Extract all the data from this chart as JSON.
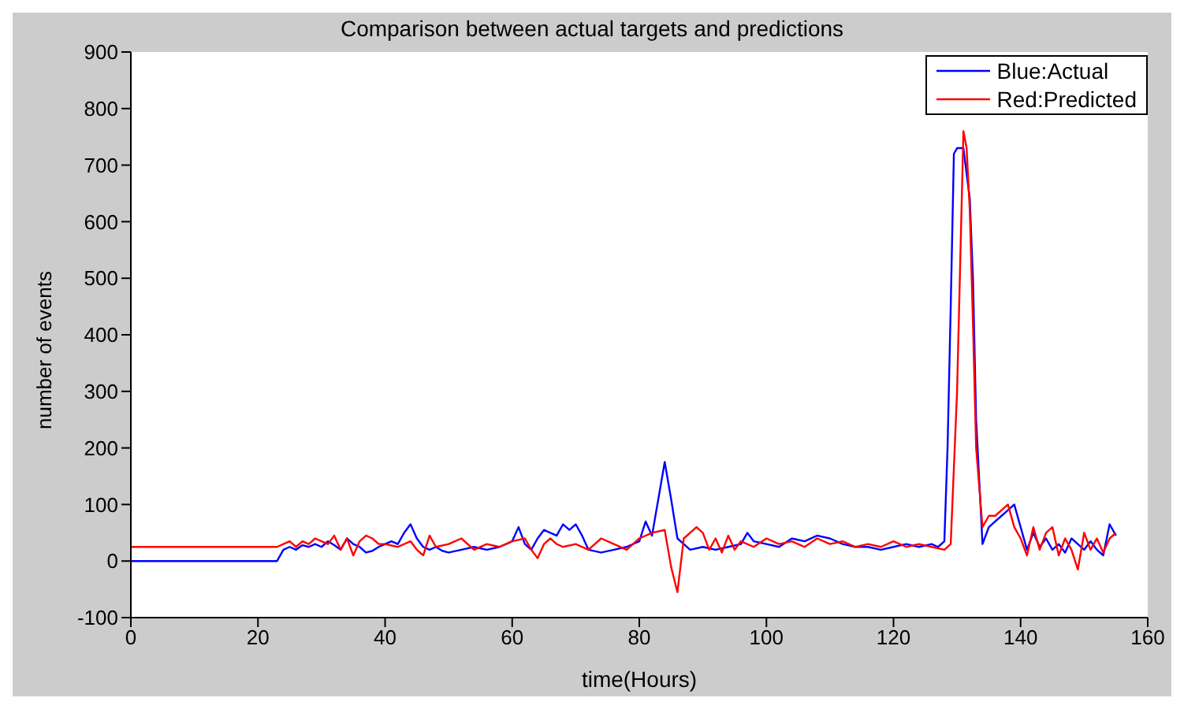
{
  "chart_data": {
    "type": "line",
    "title": "Comparison between actual targets and predictions",
    "xlabel": "time(Hours)",
    "ylabel": "number of events",
    "xlim": [
      0,
      160
    ],
    "xticks": [
      0,
      20,
      40,
      60,
      80,
      100,
      120,
      140,
      160
    ],
    "ylim": [
      -100,
      900
    ],
    "yticks": [
      -100,
      0,
      100,
      200,
      300,
      400,
      500,
      600,
      700,
      800,
      900
    ],
    "grid": false,
    "legend": "top right",
    "marker": "none",
    "line_style": "solid",
    "series": [
      {
        "name": "Blue:Actual",
        "color": "#0000ff",
        "x": [
          0,
          23,
          24,
          25,
          26,
          27,
          28,
          29,
          30,
          31,
          32,
          33,
          34,
          35,
          36,
          37,
          38,
          39,
          40,
          41,
          42,
          43,
          44,
          45,
          46,
          47,
          48,
          49,
          50,
          52,
          54,
          56,
          58,
          60,
          61,
          62,
          63,
          64,
          65,
          66,
          67,
          68,
          69,
          70,
          71,
          72,
          74,
          76,
          78,
          80,
          81,
          82,
          83,
          84,
          85,
          86,
          87,
          88,
          90,
          92,
          94,
          96,
          97,
          98,
          100,
          102,
          104,
          106,
          108,
          110,
          112,
          114,
          116,
          118,
          120,
          122,
          124,
          126,
          127,
          128,
          128.5,
          129,
          129.5,
          130,
          131,
          132,
          132.5,
          133,
          134,
          135,
          136,
          137,
          138,
          139,
          140,
          141,
          142,
          143,
          144,
          145,
          146,
          147,
          148,
          149,
          150,
          151,
          152,
          153,
          154,
          155
        ],
        "values": [
          0,
          0,
          20,
          25,
          20,
          28,
          25,
          30,
          25,
          35,
          28,
          20,
          40,
          30,
          25,
          15,
          18,
          25,
          30,
          35,
          30,
          50,
          65,
          40,
          25,
          20,
          25,
          18,
          15,
          20,
          25,
          20,
          25,
          35,
          60,
          30,
          20,
          40,
          55,
          50,
          45,
          65,
          55,
          65,
          45,
          20,
          15,
          20,
          25,
          35,
          70,
          45,
          110,
          175,
          110,
          40,
          30,
          20,
          25,
          20,
          25,
          30,
          50,
          35,
          30,
          25,
          40,
          35,
          45,
          40,
          30,
          25,
          25,
          20,
          25,
          30,
          25,
          30,
          25,
          35,
          200,
          450,
          720,
          730,
          730,
          640,
          500,
          250,
          30,
          60,
          70,
          80,
          90,
          100,
          60,
          20,
          50,
          25,
          40,
          20,
          30,
          15,
          40,
          30,
          20,
          35,
          20,
          10,
          65,
          45
        ]
      },
      {
        "name": "Red:Predicted",
        "color": "#ff0000",
        "x": [
          0,
          23,
          24,
          25,
          26,
          27,
          28,
          29,
          30,
          31,
          32,
          33,
          34,
          35,
          36,
          37,
          38,
          39,
          40,
          42,
          44,
          45,
          46,
          47,
          48,
          50,
          52,
          54,
          56,
          58,
          60,
          62,
          63,
          64,
          65,
          66,
          67,
          68,
          70,
          72,
          74,
          76,
          78,
          80,
          82,
          84,
          85,
          86,
          87,
          89,
          90,
          91,
          92,
          93,
          94,
          95,
          96,
          98,
          100,
          102,
          104,
          106,
          108,
          110,
          112,
          114,
          116,
          118,
          120,
          122,
          124,
          126,
          128,
          129,
          130,
          131,
          131.5,
          132,
          132.5,
          133,
          134,
          135,
          136,
          137,
          138,
          139,
          140,
          141,
          142,
          143,
          144,
          145,
          146,
          147,
          148,
          149,
          150,
          151,
          152,
          153,
          154,
          155
        ],
        "values": [
          25,
          25,
          30,
          35,
          25,
          35,
          30,
          40,
          35,
          30,
          45,
          20,
          40,
          10,
          35,
          45,
          40,
          30,
          30,
          25,
          35,
          20,
          10,
          45,
          25,
          30,
          40,
          20,
          30,
          25,
          35,
          40,
          20,
          5,
          30,
          40,
          30,
          25,
          30,
          20,
          40,
          30,
          20,
          40,
          50,
          55,
          -10,
          -55,
          40,
          60,
          50,
          20,
          40,
          15,
          45,
          20,
          35,
          25,
          40,
          30,
          35,
          25,
          40,
          30,
          35,
          25,
          30,
          25,
          35,
          25,
          30,
          25,
          20,
          30,
          300,
          760,
          730,
          620,
          420,
          200,
          60,
          80,
          80,
          90,
          100,
          60,
          40,
          10,
          60,
          20,
          50,
          60,
          10,
          40,
          20,
          -15,
          50,
          20,
          40,
          15,
          40,
          50
        ]
      }
    ]
  }
}
